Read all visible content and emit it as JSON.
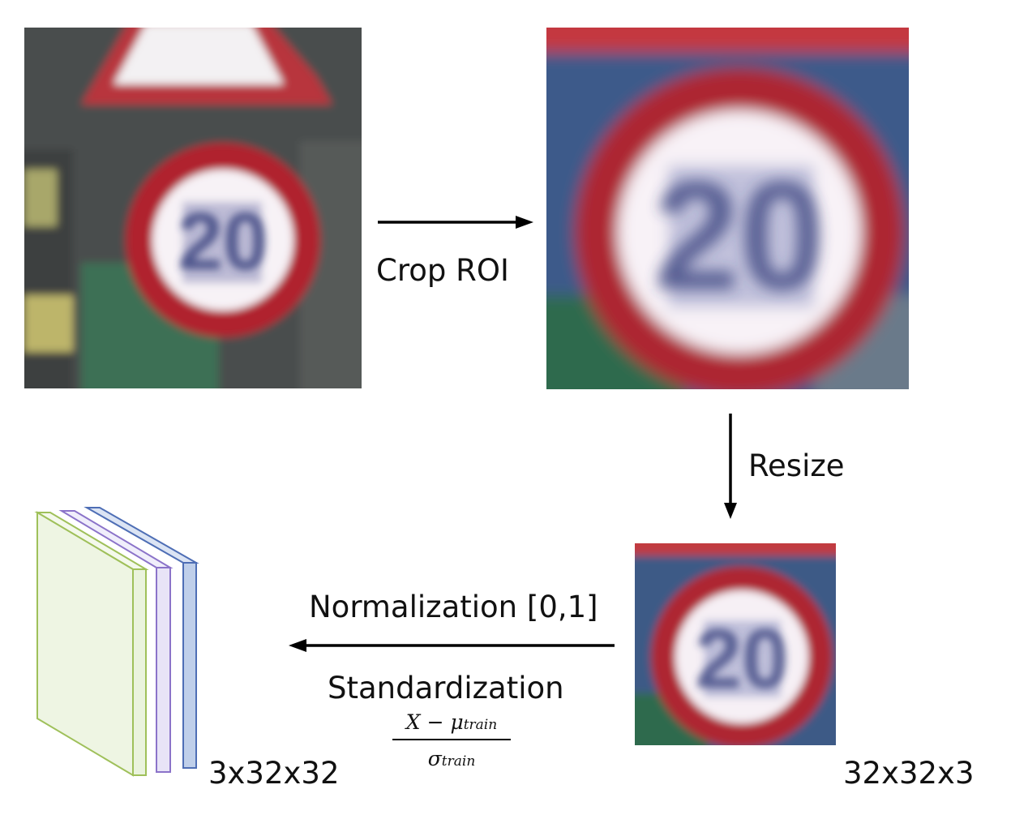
{
  "steps": {
    "crop_label": "Crop ROI",
    "resize_label": "Resize",
    "normalization_label": "Normalization [0,1]",
    "standardization_label": "Standardization"
  },
  "formula": {
    "numerator_var": "X",
    "minus": "−",
    "mu": "μ",
    "mu_subscript": "train",
    "sigma": "σ",
    "sigma_subscript": "train"
  },
  "dimensions": {
    "resized_size": "32x32x3",
    "tensor_size": "3x32x32"
  },
  "images": {
    "sign_speed_value": "20"
  },
  "colors": {
    "channel_1": "#eaf3dd",
    "channel_1_border": "#9fc05a",
    "channel_2": "#e8e4f7",
    "channel_2_border": "#8b73c9",
    "channel_3": "#bfcfea",
    "channel_3_border": "#4e6eb5",
    "arrow": "#000000"
  }
}
